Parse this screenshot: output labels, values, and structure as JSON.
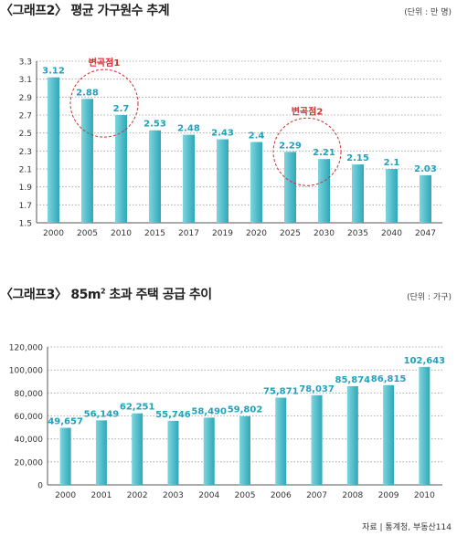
{
  "chart1": {
    "title_prefix": "〈그래프2〉",
    "title_main": "평균 가구원수 추계",
    "unit": "(단위 : 만 명)"
  },
  "chart2": {
    "title_prefix": "〈그래프3〉",
    "title_main_a": "85m",
    "title_sup": "2",
    "title_main_b": " 초과 주택 공급 추이",
    "unit": "(단위 : 가구)"
  },
  "source": "자료 | 통계청, 부동산114",
  "colors": {
    "bar_light": "#7fd4de",
    "bar_dark": "#2ea8b8",
    "label": "#1fa2bd",
    "annotation": "#d32f2f"
  },
  "chart_data": [
    {
      "type": "bar",
      "title": "평균 가구원수 추계",
      "categories": [
        "2000",
        "2005",
        "2010",
        "2015",
        "2017",
        "2019",
        "2020",
        "2025",
        "2030",
        "2035",
        "2040",
        "2047"
      ],
      "values": [
        3.12,
        2.88,
        2.7,
        2.53,
        2.48,
        2.43,
        2.4,
        2.29,
        2.21,
        2.15,
        2.1,
        2.03
      ],
      "value_labels": [
        "3.12",
        "2.88",
        "2.7",
        "2.53",
        "2.48",
        "2.43",
        "2.4",
        "2.29",
        "2.21",
        "2.15",
        "2.1",
        "2.03"
      ],
      "ylim": [
        1.5,
        3.3
      ],
      "yticks": [
        "3.3",
        "3.1",
        "2.9",
        "2.7",
        "2.5",
        "2.3",
        "2.1",
        "1.9",
        "1.7",
        "1.5"
      ],
      "grid": true,
      "annotations": [
        {
          "text": "변곡점1",
          "categories": [
            "2005",
            "2010"
          ]
        },
        {
          "text": "변곡점2",
          "categories": [
            "2025",
            "2030"
          ]
        }
      ]
    },
    {
      "type": "bar",
      "title": "85m2 초과 주택 공급 추이",
      "categories": [
        "2000",
        "2001",
        "2002",
        "2003",
        "2004",
        "2005",
        "2006",
        "2007",
        "2008",
        "2009",
        "2010"
      ],
      "values": [
        49657,
        56149,
        62251,
        55746,
        58490,
        59802,
        75871,
        78037,
        85874,
        86815,
        102643
      ],
      "value_labels": [
        "49,657",
        "56,149",
        "62,251",
        "55,746",
        "58,490",
        "59,802",
        "75,871",
        "78,037",
        "85,874",
        "86,815",
        "102,643"
      ],
      "ylim": [
        0,
        120000
      ],
      "yticks": [
        "120,000",
        "100,000",
        "80,000",
        "60,000",
        "40,000",
        "20,000",
        "0"
      ],
      "grid": true
    }
  ]
}
